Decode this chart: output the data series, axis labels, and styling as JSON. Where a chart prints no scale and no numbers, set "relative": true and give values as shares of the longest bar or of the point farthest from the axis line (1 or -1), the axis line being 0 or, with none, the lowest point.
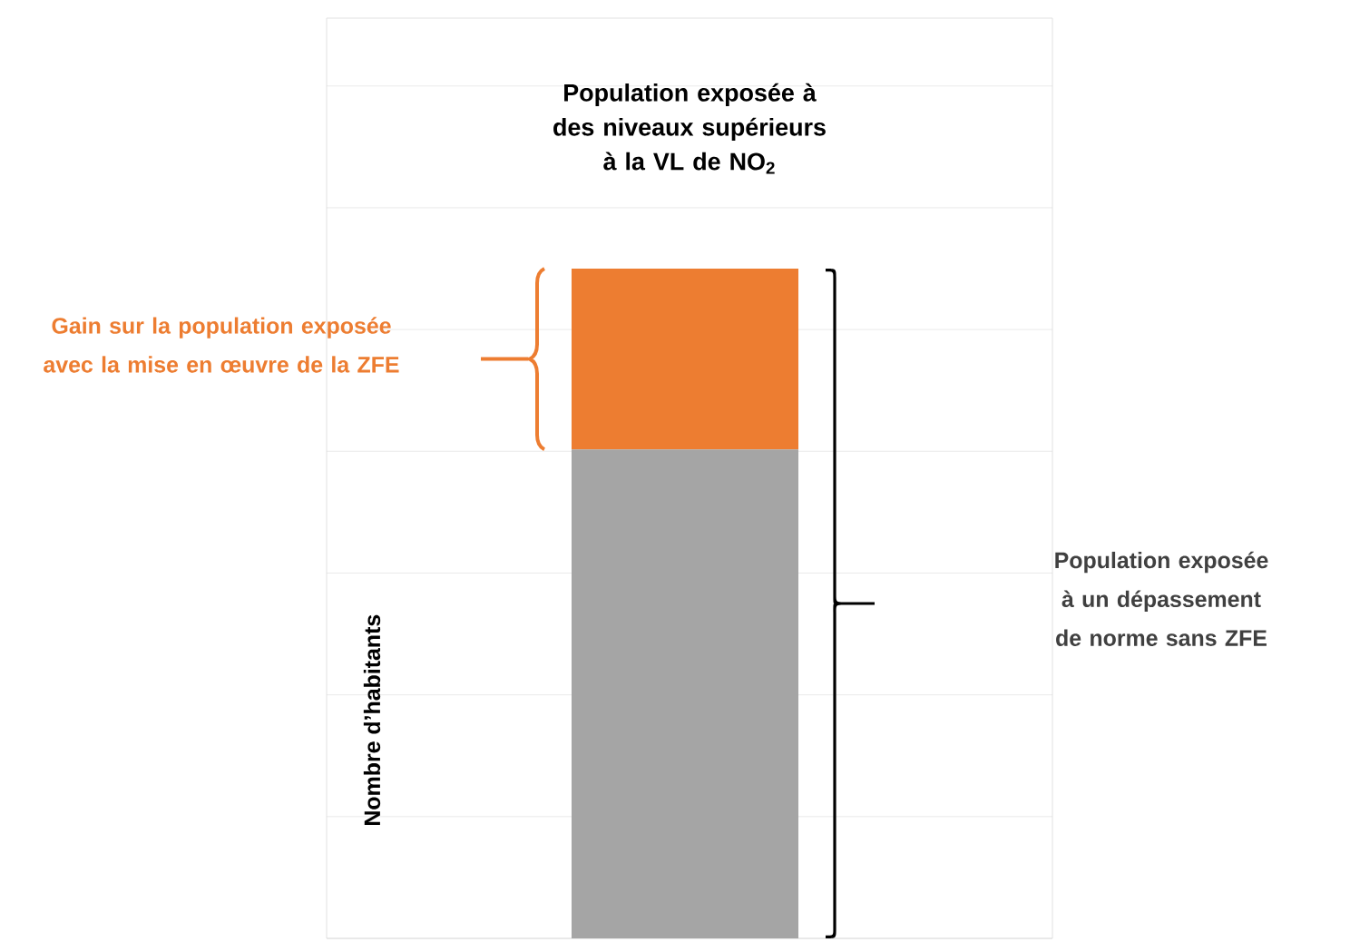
{
  "chart_data": {
    "type": "bar",
    "stacked": true,
    "relative": true,
    "title": "Population exposée à des niveaux supérieurs à la VL de NO$_{2}$",
    "ylabel": "Nombre d’habitants",
    "categories": [
      null
    ],
    "series": [
      {
        "color": "#a5a5a5",
        "values": [
          0.73
        ]
      },
      {
        "color": "#ed7d31",
        "values": [
          0.27
        ]
      }
    ],
    "annotations": [
      "Gain sur la population exposée avec la mise en œuvre de la ZFE",
      "Population exposée à un dépassement de norme sans ZFE"
    ],
    "grid": "y"
  }
}
